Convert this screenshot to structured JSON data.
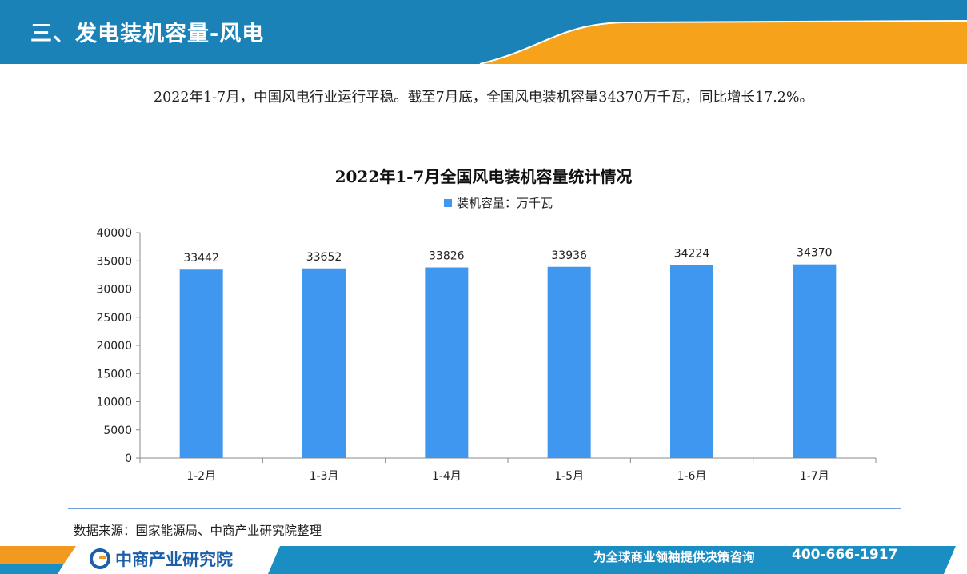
{
  "header": {
    "section_title": "三、发电装机容量-风电"
  },
  "summary": "2022年1-7月，中国风电行业运行平稳。截至7月底，全国风电装机容量34370万千瓦，同比增长17.2%。",
  "chart_data": {
    "type": "bar",
    "title": "2022年1-7月全国风电装机容量统计情况",
    "categories": [
      "1-2月",
      "1-3月",
      "1-4月",
      "1-5月",
      "1-6月",
      "1-7月"
    ],
    "series": [
      {
        "name": "装机容量：万千瓦",
        "values": [
          33442,
          33652,
          33826,
          33936,
          34224,
          34370
        ]
      }
    ],
    "ylim": [
      0,
      40000
    ],
    "yticks": [
      0,
      5000,
      10000,
      15000,
      20000,
      25000,
      30000,
      35000,
      40000
    ],
    "legend_position": "top-center",
    "grid": false,
    "bar_color": "#3f97f0"
  },
  "source": "数据来源：国家能源局、中商产业研究院整理",
  "footer": {
    "logo_text": "中商产业研究院",
    "slogan": "为全球商业领袖提供决策咨询",
    "phone": "400-666-1917"
  },
  "colors": {
    "header_blue": "#1a82b7",
    "accent_orange": "#f7a21b",
    "footer_blue": "#1a8dc2",
    "footer_orange": "#f29a1f"
  }
}
